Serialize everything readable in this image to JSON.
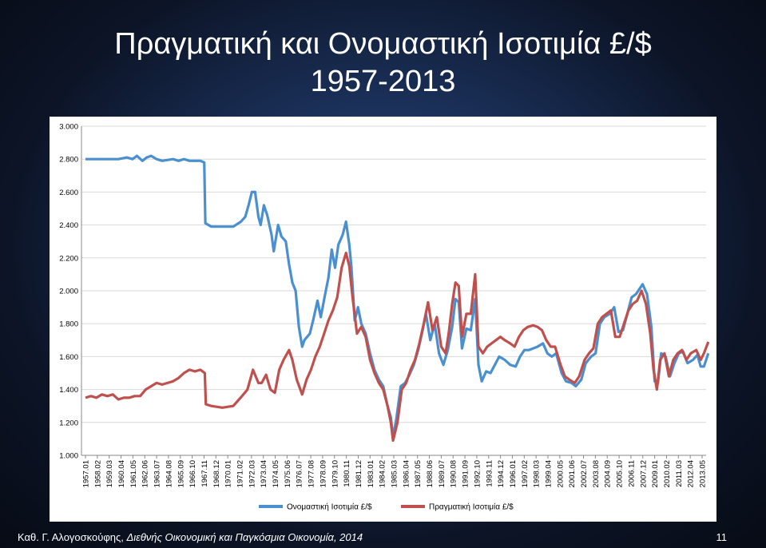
{
  "slide": {
    "title": "Πραγματική και Ονομαστική Ισοτιμία £/$",
    "subtitle": "1957-2013",
    "footer_author": "Καθ. Γ. Αλογοσκούφης, ",
    "footer_work": "Διεθνής Οικονομική και Παγκόσμια Οικονομία, 2014",
    "page_number": "11"
  },
  "chart_data": {
    "type": "line",
    "title": "",
    "xlabel": "",
    "ylabel": "",
    "ylim": [
      1.0,
      3.0
    ],
    "yticks": [
      "1.000",
      "1.200",
      "1.400",
      "1.600",
      "1.800",
      "2.000",
      "2.200",
      "2.400",
      "2.600",
      "2.800",
      "3.000"
    ],
    "grid": true,
    "legend_position": "bottom",
    "categories": [
      "1957.01",
      "1958.02",
      "1959.03",
      "1960.04",
      "1961.05",
      "1962.06",
      "1963.07",
      "1964.08",
      "1965.09",
      "1966.10",
      "1967.11",
      "1968.12",
      "1970.01",
      "1971.02",
      "1972.03",
      "1973.04",
      "1974.05",
      "1975.06",
      "1976.07",
      "1977.08",
      "1978.09",
      "1979.10",
      "1980.11",
      "1981.12",
      "1983.01",
      "1984.02",
      "1985.03",
      "1986.04",
      "1987.05",
      "1988.06",
      "1989.07",
      "1990.08",
      "1991.09",
      "1992.10",
      "1993.11",
      "1994.12",
      "1996.01",
      "1997.02",
      "1998.03",
      "1999.04",
      "2000.05",
      "2001.06",
      "2002.07",
      "2003.08",
      "2004.09",
      "2005.10",
      "2006.11",
      "2007.12",
      "2009.01",
      "2010.02",
      "2011.03",
      "2012.04",
      "2013.05"
    ],
    "series": [
      {
        "name": "Ονομαστική Ισοτιμία £/$",
        "color": "#4a8fd0",
        "points": [
          [
            1957.0,
            2.8
          ],
          [
            1958.0,
            2.8
          ],
          [
            1959.0,
            2.8
          ],
          [
            1960.0,
            2.8
          ],
          [
            1960.8,
            2.81
          ],
          [
            1961.3,
            2.8
          ],
          [
            1961.7,
            2.82
          ],
          [
            1962.2,
            2.79
          ],
          [
            1962.6,
            2.81
          ],
          [
            1963.0,
            2.82
          ],
          [
            1963.5,
            2.8
          ],
          [
            1964.0,
            2.79
          ],
          [
            1965.0,
            2.8
          ],
          [
            1965.5,
            2.79
          ],
          [
            1966.0,
            2.8
          ],
          [
            1966.5,
            2.79
          ],
          [
            1967.2,
            2.79
          ],
          [
            1967.5,
            2.79
          ],
          [
            1967.85,
            2.78
          ],
          [
            1967.95,
            2.41
          ],
          [
            1968.5,
            2.39
          ],
          [
            1969.5,
            2.39
          ],
          [
            1970.5,
            2.39
          ],
          [
            1971.2,
            2.42
          ],
          [
            1971.6,
            2.45
          ],
          [
            1971.9,
            2.52
          ],
          [
            1972.2,
            2.6
          ],
          [
            1972.5,
            2.6
          ],
          [
            1972.8,
            2.45
          ],
          [
            1973.0,
            2.4
          ],
          [
            1973.3,
            2.52
          ],
          [
            1973.6,
            2.46
          ],
          [
            1974.0,
            2.34
          ],
          [
            1974.2,
            2.24
          ],
          [
            1974.6,
            2.4
          ],
          [
            1974.9,
            2.33
          ],
          [
            1975.3,
            2.3
          ],
          [
            1975.6,
            2.16
          ],
          [
            1975.9,
            2.05
          ],
          [
            1976.2,
            2.0
          ],
          [
            1976.5,
            1.78
          ],
          [
            1976.8,
            1.66
          ],
          [
            1977.0,
            1.7
          ],
          [
            1977.5,
            1.74
          ],
          [
            1977.8,
            1.82
          ],
          [
            1978.2,
            1.94
          ],
          [
            1978.5,
            1.84
          ],
          [
            1978.9,
            1.98
          ],
          [
            1979.2,
            2.08
          ],
          [
            1979.5,
            2.25
          ],
          [
            1979.8,
            2.14
          ],
          [
            1980.1,
            2.28
          ],
          [
            1980.5,
            2.34
          ],
          [
            1980.8,
            2.42
          ],
          [
            1981.1,
            2.28
          ],
          [
            1981.3,
            2.14
          ],
          [
            1981.6,
            1.82
          ],
          [
            1981.9,
            1.9
          ],
          [
            1982.2,
            1.8
          ],
          [
            1982.6,
            1.74
          ],
          [
            1983.0,
            1.62
          ],
          [
            1983.4,
            1.52
          ],
          [
            1983.8,
            1.46
          ],
          [
            1984.2,
            1.42
          ],
          [
            1984.6,
            1.3
          ],
          [
            1984.9,
            1.23
          ],
          [
            1985.1,
            1.11
          ],
          [
            1985.4,
            1.22
          ],
          [
            1985.8,
            1.42
          ],
          [
            1986.2,
            1.44
          ],
          [
            1986.6,
            1.49
          ],
          [
            1987.0,
            1.55
          ],
          [
            1987.4,
            1.64
          ],
          [
            1987.8,
            1.76
          ],
          [
            1988.1,
            1.86
          ],
          [
            1988.5,
            1.7
          ],
          [
            1988.9,
            1.8
          ],
          [
            1989.3,
            1.62
          ],
          [
            1989.7,
            1.55
          ],
          [
            1990.1,
            1.64
          ],
          [
            1990.5,
            1.78
          ],
          [
            1990.8,
            1.95
          ],
          [
            1991.1,
            1.93
          ],
          [
            1991.4,
            1.65
          ],
          [
            1991.8,
            1.77
          ],
          [
            1992.2,
            1.76
          ],
          [
            1992.6,
            1.95
          ],
          [
            1992.9,
            1.55
          ],
          [
            1993.2,
            1.45
          ],
          [
            1993.6,
            1.51
          ],
          [
            1994.0,
            1.5
          ],
          [
            1994.4,
            1.55
          ],
          [
            1994.8,
            1.6
          ],
          [
            1995.3,
            1.58
          ],
          [
            1995.8,
            1.55
          ],
          [
            1996.3,
            1.54
          ],
          [
            1996.7,
            1.6
          ],
          [
            1997.1,
            1.64
          ],
          [
            1997.5,
            1.64
          ],
          [
            1997.9,
            1.65
          ],
          [
            1998.3,
            1.66
          ],
          [
            1998.8,
            1.68
          ],
          [
            1999.2,
            1.62
          ],
          [
            1999.6,
            1.6
          ],
          [
            2000.0,
            1.62
          ],
          [
            2000.5,
            1.5
          ],
          [
            2000.9,
            1.45
          ],
          [
            2001.4,
            1.44
          ],
          [
            2001.8,
            1.42
          ],
          [
            2002.3,
            1.46
          ],
          [
            2002.7,
            1.56
          ],
          [
            2003.2,
            1.6
          ],
          [
            2003.6,
            1.62
          ],
          [
            2004.0,
            1.8
          ],
          [
            2004.4,
            1.84
          ],
          [
            2004.9,
            1.86
          ],
          [
            2005.3,
            1.9
          ],
          [
            2005.7,
            1.75
          ],
          [
            2006.1,
            1.76
          ],
          [
            2006.5,
            1.86
          ],
          [
            2006.9,
            1.96
          ],
          [
            2007.3,
            1.98
          ],
          [
            2007.7,
            2.02
          ],
          [
            2007.9,
            2.04
          ],
          [
            2008.3,
            1.98
          ],
          [
            2008.7,
            1.78
          ],
          [
            2009.0,
            1.45
          ],
          [
            2009.3,
            1.44
          ],
          [
            2009.6,
            1.62
          ],
          [
            2010.0,
            1.6
          ],
          [
            2010.4,
            1.48
          ],
          [
            2010.8,
            1.56
          ],
          [
            2011.2,
            1.62
          ],
          [
            2011.6,
            1.63
          ],
          [
            2012.0,
            1.56
          ],
          [
            2012.5,
            1.58
          ],
          [
            2012.9,
            1.61
          ],
          [
            2013.2,
            1.54
          ],
          [
            2013.5,
            1.54
          ],
          [
            2013.9,
            1.62
          ]
        ]
      },
      {
        "name": "Πραγματική Ισοτιμία £/$",
        "color": "#c0504d",
        "points": [
          [
            1957.0,
            1.35
          ],
          [
            1957.5,
            1.36
          ],
          [
            1958.0,
            1.35
          ],
          [
            1958.5,
            1.37
          ],
          [
            1959.0,
            1.36
          ],
          [
            1959.5,
            1.37
          ],
          [
            1960.0,
            1.34
          ],
          [
            1960.5,
            1.35
          ],
          [
            1961.0,
            1.35
          ],
          [
            1961.5,
            1.36
          ],
          [
            1962.0,
            1.36
          ],
          [
            1962.5,
            1.4
          ],
          [
            1963.0,
            1.42
          ],
          [
            1963.5,
            1.44
          ],
          [
            1964.0,
            1.43
          ],
          [
            1964.5,
            1.44
          ],
          [
            1965.0,
            1.45
          ],
          [
            1965.5,
            1.47
          ],
          [
            1966.0,
            1.5
          ],
          [
            1966.5,
            1.52
          ],
          [
            1967.0,
            1.51
          ],
          [
            1967.5,
            1.52
          ],
          [
            1967.9,
            1.5
          ],
          [
            1968.0,
            1.31
          ],
          [
            1968.5,
            1.3
          ],
          [
            1969.5,
            1.29
          ],
          [
            1970.5,
            1.3
          ],
          [
            1971.3,
            1.36
          ],
          [
            1971.8,
            1.4
          ],
          [
            1972.3,
            1.52
          ],
          [
            1972.8,
            1.44
          ],
          [
            1973.1,
            1.44
          ],
          [
            1973.5,
            1.49
          ],
          [
            1973.9,
            1.4
          ],
          [
            1974.3,
            1.38
          ],
          [
            1974.7,
            1.52
          ],
          [
            1975.1,
            1.58
          ],
          [
            1975.6,
            1.64
          ],
          [
            1975.9,
            1.58
          ],
          [
            1976.3,
            1.46
          ],
          [
            1976.8,
            1.37
          ],
          [
            1977.2,
            1.46
          ],
          [
            1977.6,
            1.52
          ],
          [
            1978.0,
            1.6
          ],
          [
            1978.4,
            1.66
          ],
          [
            1978.8,
            1.74
          ],
          [
            1979.2,
            1.82
          ],
          [
            1979.6,
            1.88
          ],
          [
            1980.0,
            1.96
          ],
          [
            1980.4,
            2.14
          ],
          [
            1980.8,
            2.23
          ],
          [
            1981.1,
            2.15
          ],
          [
            1981.4,
            1.96
          ],
          [
            1981.8,
            1.74
          ],
          [
            1982.2,
            1.78
          ],
          [
            1982.6,
            1.72
          ],
          [
            1983.0,
            1.58
          ],
          [
            1983.4,
            1.5
          ],
          [
            1983.8,
            1.44
          ],
          [
            1984.2,
            1.4
          ],
          [
            1984.6,
            1.3
          ],
          [
            1984.9,
            1.2
          ],
          [
            1985.1,
            1.09
          ],
          [
            1985.5,
            1.2
          ],
          [
            1985.9,
            1.4
          ],
          [
            1986.3,
            1.44
          ],
          [
            1986.7,
            1.52
          ],
          [
            1987.1,
            1.58
          ],
          [
            1987.5,
            1.68
          ],
          [
            1987.9,
            1.8
          ],
          [
            1988.3,
            1.93
          ],
          [
            1988.7,
            1.76
          ],
          [
            1989.1,
            1.84
          ],
          [
            1989.5,
            1.66
          ],
          [
            1989.9,
            1.62
          ],
          [
            1990.2,
            1.75
          ],
          [
            1990.5,
            1.92
          ],
          [
            1990.8,
            2.05
          ],
          [
            1991.1,
            2.03
          ],
          [
            1991.4,
            1.72
          ],
          [
            1991.8,
            1.86
          ],
          [
            1992.2,
            1.86
          ],
          [
            1992.6,
            2.1
          ],
          [
            1992.9,
            1.66
          ],
          [
            1993.3,
            1.62
          ],
          [
            1993.7,
            1.66
          ],
          [
            1994.1,
            1.68
          ],
          [
            1994.5,
            1.7
          ],
          [
            1994.9,
            1.72
          ],
          [
            1995.3,
            1.7
          ],
          [
            1995.8,
            1.68
          ],
          [
            1996.2,
            1.66
          ],
          [
            1996.6,
            1.72
          ],
          [
            1997.0,
            1.76
          ],
          [
            1997.4,
            1.78
          ],
          [
            1997.9,
            1.79
          ],
          [
            1998.3,
            1.78
          ],
          [
            1998.7,
            1.76
          ],
          [
            1999.1,
            1.7
          ],
          [
            1999.5,
            1.66
          ],
          [
            1999.9,
            1.66
          ],
          [
            2000.4,
            1.55
          ],
          [
            2000.8,
            1.48
          ],
          [
            2001.2,
            1.46
          ],
          [
            2001.7,
            1.44
          ],
          [
            2002.1,
            1.48
          ],
          [
            2002.6,
            1.58
          ],
          [
            2003.0,
            1.62
          ],
          [
            2003.4,
            1.65
          ],
          [
            2003.8,
            1.8
          ],
          [
            2004.2,
            1.84
          ],
          [
            2004.6,
            1.86
          ],
          [
            2005.0,
            1.88
          ],
          [
            2005.4,
            1.72
          ],
          [
            2005.8,
            1.72
          ],
          [
            2006.2,
            1.8
          ],
          [
            2006.6,
            1.88
          ],
          [
            2007.0,
            1.92
          ],
          [
            2007.4,
            1.94
          ],
          [
            2007.8,
            2.0
          ],
          [
            2008.2,
            1.92
          ],
          [
            2008.6,
            1.74
          ],
          [
            2008.9,
            1.52
          ],
          [
            2009.2,
            1.4
          ],
          [
            2009.5,
            1.58
          ],
          [
            2009.9,
            1.62
          ],
          [
            2010.3,
            1.48
          ],
          [
            2010.7,
            1.58
          ],
          [
            2011.1,
            1.62
          ],
          [
            2011.5,
            1.64
          ],
          [
            2011.9,
            1.58
          ],
          [
            2012.3,
            1.62
          ],
          [
            2012.8,
            1.64
          ],
          [
            2013.2,
            1.58
          ],
          [
            2013.5,
            1.62
          ],
          [
            2013.9,
            1.69
          ]
        ]
      }
    ]
  }
}
